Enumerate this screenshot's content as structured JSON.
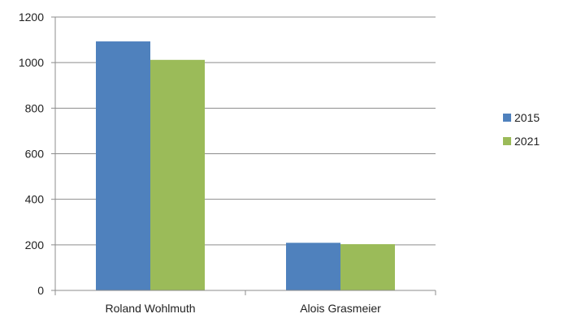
{
  "chart_data": {
    "type": "bar",
    "title": "",
    "xlabel": "",
    "ylabel": "",
    "categories": [
      "Roland Wohlmuth",
      "Alois Grasmeier"
    ],
    "series": [
      {
        "name": "2015",
        "values": [
          1093,
          209
        ],
        "color": "#4f81bd"
      },
      {
        "name": "2021",
        "values": [
          1012,
          203
        ],
        "color": "#9bbb59"
      }
    ],
    "ylim": [
      0,
      1200
    ],
    "yticks": [
      0,
      200,
      400,
      600,
      800,
      1000,
      1200
    ],
    "grid": true,
    "legend_position": "right"
  }
}
